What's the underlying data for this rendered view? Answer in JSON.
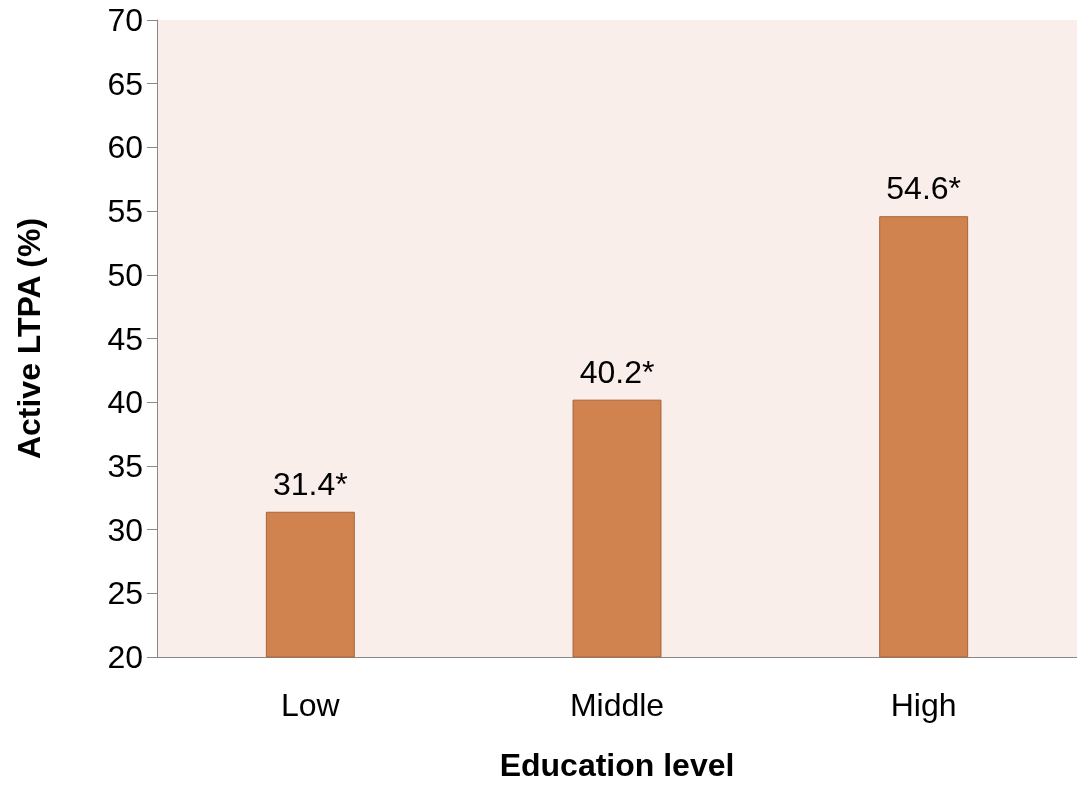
{
  "chart_data": {
    "type": "bar",
    "xlabel": "Education level",
    "ylabel": "Active LTPA (%)",
    "categories": [
      "Low",
      "Middle",
      "High"
    ],
    "values": [
      31.4,
      40.2,
      54.6
    ],
    "value_labels": [
      "31.4*",
      "40.2*",
      "54.6*"
    ],
    "color": "#d0834f",
    "ylim": [
      20,
      70
    ],
    "yticks": [
      20,
      25,
      30,
      35,
      40,
      45,
      50,
      55,
      60,
      65,
      70
    ],
    "grid": false
  }
}
